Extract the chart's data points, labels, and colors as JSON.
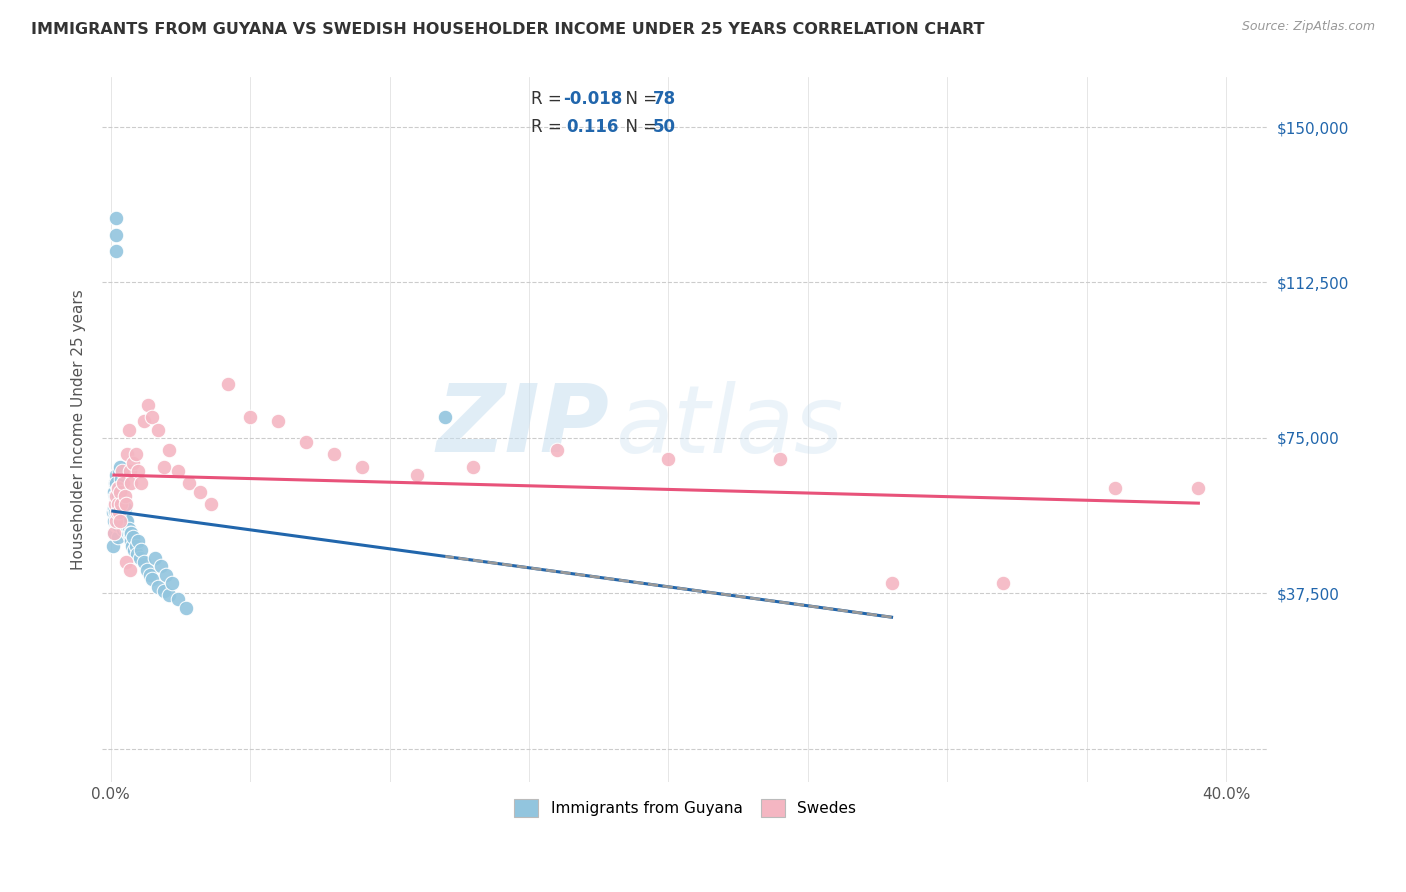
{
  "title": "IMMIGRANTS FROM GUYANA VS SWEDISH HOUSEHOLDER INCOME UNDER 25 YEARS CORRELATION CHART",
  "source": "Source: ZipAtlas.com",
  "ylabel_label": "Householder Income Under 25 years",
  "x_min": -0.003,
  "x_max": 0.415,
  "y_min": -8000,
  "y_max": 162000,
  "watermark_zip": "ZIP",
  "watermark_atlas": "atlas",
  "legend_r1_pre": "R = ",
  "legend_r1_val": "-0.018",
  "legend_n1_pre": "  N = ",
  "legend_n1_val": "78",
  "legend_r2_pre": "R =  ",
  "legend_r2_val": "0.116",
  "legend_n2_pre": "  N = ",
  "legend_n2_val": "50",
  "color_blue_dot": "#92c5de",
  "color_pink_dot": "#f4b6c2",
  "color_blue_text": "#2166ac",
  "color_trend_blue_solid": "#2166ac",
  "color_trend_blue_dash": "#999999",
  "color_trend_pink": "#e8527a",
  "legend_bottom": [
    "Immigrants from Guyana",
    "Swedes"
  ],
  "grid_color": "#cccccc",
  "background_color": "#ffffff",
  "title_color": "#333333",
  "y_tick_labels": [
    "",
    "$37,500",
    "$75,000",
    "$112,500",
    "$150,000"
  ],
  "y_tick_positions": [
    0,
    37500,
    75000,
    112500,
    150000
  ],
  "guyana_x": [
    0.0008,
    0.001,
    0.0011,
    0.0012,
    0.0013,
    0.0014,
    0.0015,
    0.0015,
    0.0016,
    0.0017,
    0.0018,
    0.0019,
    0.002,
    0.0021,
    0.0021,
    0.0022,
    0.0022,
    0.0023,
    0.0024,
    0.0025,
    0.0025,
    0.0026,
    0.0027,
    0.0028,
    0.0029,
    0.003,
    0.0031,
    0.0032,
    0.0033,
    0.0034,
    0.0035,
    0.0036,
    0.0037,
    0.0038,
    0.004,
    0.0041,
    0.0042,
    0.0043,
    0.0045,
    0.0046,
    0.0048,
    0.005,
    0.0052,
    0.0054,
    0.0056,
    0.0058,
    0.006,
    0.0062,
    0.0065,
    0.0068,
    0.007,
    0.0073,
    0.0075,
    0.0078,
    0.008,
    0.0085,
    0.009,
    0.0095,
    0.01,
    0.0105,
    0.011,
    0.012,
    0.013,
    0.014,
    0.015,
    0.017,
    0.019,
    0.021,
    0.024,
    0.027,
    0.016,
    0.018,
    0.02,
    0.022,
    0.0018,
    0.0019,
    0.002,
    0.12
  ],
  "guyana_y": [
    57000,
    49000,
    62000,
    58000,
    55000,
    52000,
    64000,
    61000,
    59000,
    57000,
    56000,
    54000,
    66000,
    64000,
    59000,
    61000,
    59000,
    57000,
    54000,
    51000,
    63000,
    61000,
    59000,
    54000,
    67000,
    63000,
    59000,
    62000,
    60000,
    58000,
    68000,
    65000,
    62000,
    59000,
    60000,
    58000,
    56000,
    53000,
    59000,
    57000,
    54000,
    58000,
    56000,
    53000,
    55000,
    53000,
    55000,
    52000,
    53000,
    51000,
    52000,
    50000,
    52000,
    49000,
    51000,
    48000,
    49000,
    47000,
    50000,
    46000,
    48000,
    45000,
    43000,
    42000,
    41000,
    39000,
    38000,
    37000,
    36000,
    34000,
    46000,
    44000,
    42000,
    40000,
    128000,
    124000,
    120000,
    80000
  ],
  "swede_x": [
    0.0012,
    0.0015,
    0.0018,
    0.002,
    0.0022,
    0.0025,
    0.0028,
    0.003,
    0.0033,
    0.0035,
    0.0038,
    0.004,
    0.0045,
    0.005,
    0.0055,
    0.006,
    0.0065,
    0.007,
    0.0075,
    0.008,
    0.009,
    0.01,
    0.011,
    0.012,
    0.0135,
    0.015,
    0.017,
    0.019,
    0.021,
    0.024,
    0.028,
    0.032,
    0.036,
    0.042,
    0.05,
    0.06,
    0.07,
    0.08,
    0.09,
    0.11,
    0.13,
    0.16,
    0.2,
    0.24,
    0.28,
    0.32,
    0.36,
    0.0055,
    0.007,
    0.39
  ],
  "swede_y": [
    52000,
    59000,
    55000,
    61000,
    57000,
    63000,
    59000,
    57000,
    55000,
    62000,
    59000,
    67000,
    64000,
    61000,
    59000,
    71000,
    77000,
    67000,
    64000,
    69000,
    71000,
    67000,
    64000,
    79000,
    83000,
    80000,
    77000,
    68000,
    72000,
    67000,
    64000,
    62000,
    59000,
    88000,
    80000,
    79000,
    74000,
    71000,
    68000,
    66000,
    68000,
    72000,
    70000,
    70000,
    40000,
    40000,
    63000,
    45000,
    43000,
    63000
  ]
}
